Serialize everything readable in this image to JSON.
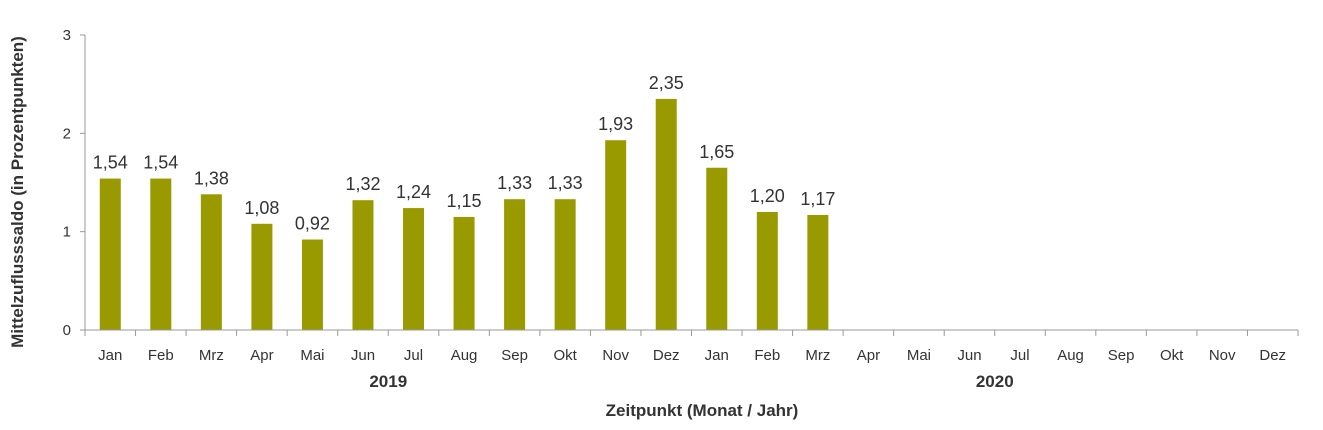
{
  "chart_data": {
    "type": "bar",
    "categories": [
      "Jan",
      "Feb",
      "Mrz",
      "Apr",
      "Mai",
      "Jun",
      "Jul",
      "Aug",
      "Sep",
      "Okt",
      "Nov",
      "Dez",
      "Jan",
      "Feb",
      "Mrz",
      "Apr",
      "Mai",
      "Jun",
      "Jul",
      "Aug",
      "Sep",
      "Okt",
      "Nov",
      "Dez"
    ],
    "years": [
      {
        "label": "2019",
        "start": 0,
        "count": 12
      },
      {
        "label": "2020",
        "start": 12,
        "count": 12
      }
    ],
    "values": [
      1.54,
      1.54,
      1.38,
      1.08,
      0.92,
      1.32,
      1.24,
      1.15,
      1.33,
      1.33,
      1.93,
      2.35,
      1.65,
      1.2,
      1.17,
      null,
      null,
      null,
      null,
      null,
      null,
      null,
      null,
      null
    ],
    "value_labels": [
      "1,54",
      "1,54",
      "1,38",
      "1,08",
      "0,92",
      "1,32",
      "1,24",
      "1,15",
      "1,33",
      "1,33",
      "1,93",
      "2,35",
      "1,65",
      "1,20",
      "1,17",
      "",
      "",
      "",
      "",
      "",
      "",
      "",
      "",
      ""
    ],
    "ylim": [
      0,
      3
    ],
    "yticks": [
      "0",
      "1",
      "2",
      "3"
    ],
    "xlabel": "Zeitpunkt (Monat / Jahr)",
    "ylabel": "Mittelzuflusssaldo (in Prozentpunkten)",
    "title": "",
    "grid": false,
    "bar_color": "#999900",
    "axis_color": "#999999"
  }
}
